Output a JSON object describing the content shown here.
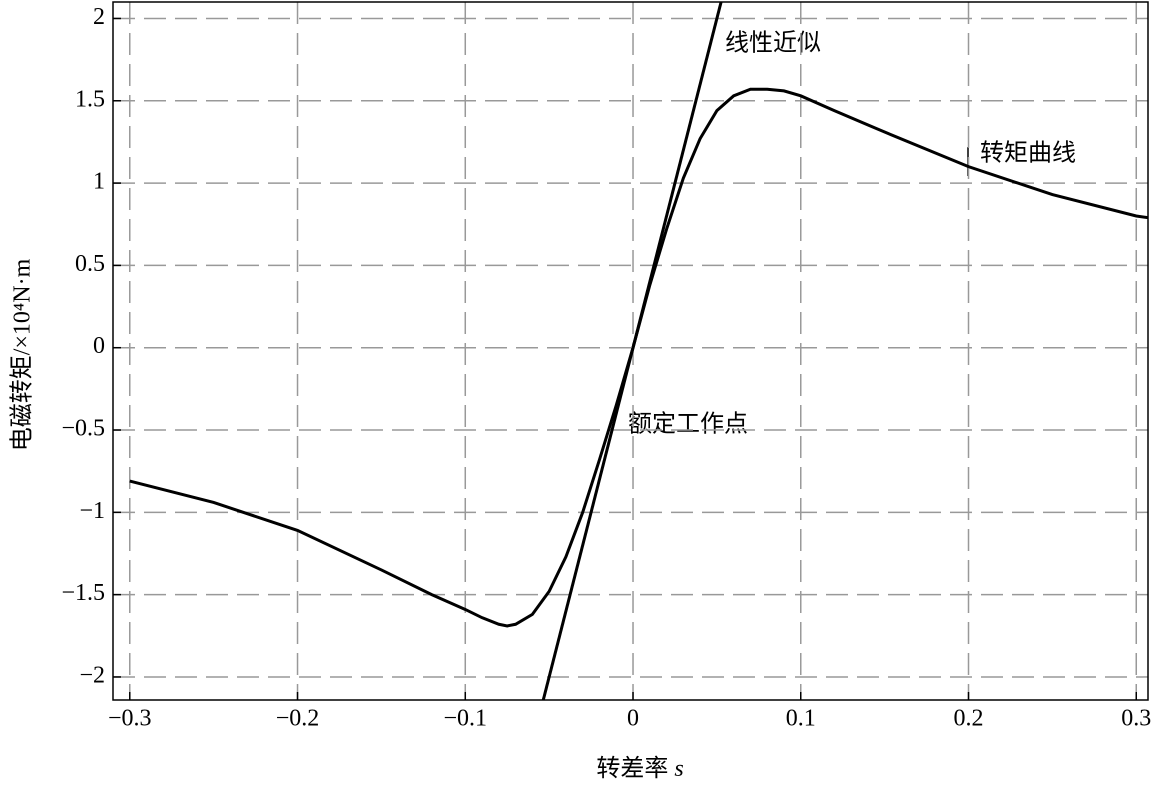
{
  "chart_data": {
    "type": "line",
    "xlabel": "转差率",
    "xlabel_var": "s",
    "ylabel": "电磁转矩/×10⁴N·m",
    "x": [
      -0.3,
      -0.25,
      -0.2,
      -0.15,
      -0.12,
      -0.1,
      -0.09,
      -0.08,
      -0.075,
      -0.07,
      -0.06,
      -0.05,
      -0.04,
      -0.03,
      -0.02,
      -0.01,
      0,
      0.01,
      0.02,
      0.03,
      0.04,
      0.05,
      0.06,
      0.07,
      0.08,
      0.09,
      0.1,
      0.12,
      0.15,
      0.2,
      0.25,
      0.3,
      0.307
    ],
    "series": [
      {
        "name": "转矩曲线",
        "color": "#000000",
        "values": [
          -0.81,
          -0.94,
          -1.11,
          -1.35,
          -1.5,
          -1.59,
          -1.64,
          -1.68,
          -1.69,
          -1.68,
          -1.62,
          -1.48,
          -1.27,
          -1.0,
          -0.68,
          -0.35,
          0,
          0.38,
          0.72,
          1.03,
          1.27,
          1.44,
          1.53,
          1.57,
          1.57,
          1.56,
          1.53,
          1.44,
          1.31,
          1.1,
          0.93,
          0.8,
          0.79
        ]
      },
      {
        "name": "线性近似",
        "color": "#000000",
        "x": [
          -0.0535,
          0.0525
        ],
        "values": [
          -2.14,
          2.1
        ]
      }
    ],
    "annotations": [
      "额定工作点"
    ],
    "xlim": [
      -0.31,
      0.307
    ],
    "ylim": [
      -2.14,
      2.1
    ],
    "xticks": [
      {
        "value": -0.3,
        "label": "−0.3"
      },
      {
        "value": -0.2,
        "label": "−0.2"
      },
      {
        "value": -0.1,
        "label": "−0.1"
      },
      0,
      0.1,
      0.2,
      0.3
    ],
    "yticks": [
      {
        "value": -2,
        "label": "−2"
      },
      {
        "value": -1.5,
        "label": "−1.5"
      },
      {
        "value": -1,
        "label": "−1"
      },
      {
        "value": -0.5,
        "label": "−0.5"
      },
      0,
      0.5,
      1,
      1.5,
      2
    ],
    "grid": true
  }
}
